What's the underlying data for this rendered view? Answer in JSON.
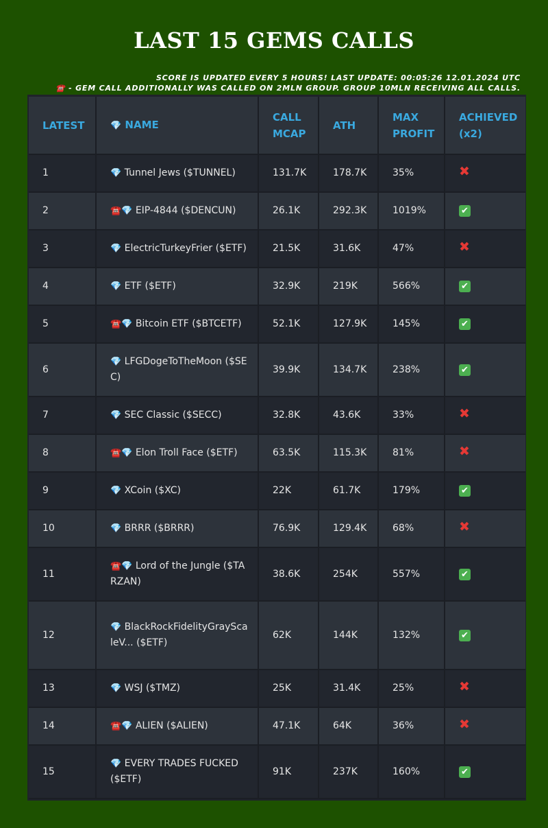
{
  "page": {
    "title": "LAST 15 GEMS CALLS",
    "note_line1": "SCORE IS UPDATED EVERY 5 HOURS! LAST UPDATE: 00:05:26 12.01.2024 UTC",
    "note_line2_icon": "☎️",
    "note_line2": " - GEM CALL ADDITIONALLY WAS CALLED ON 2MLN GROUP. GROUP 10MLN RECEIVING ALL CALLS."
  },
  "icons": {
    "gem": "💎",
    "phone": "☎️",
    "achieved_yes": "✔",
    "achieved_no": "✖"
  },
  "colors": {
    "page_bg": "#1d5100",
    "header_text": "#3aa9df",
    "achieved_yes": "#4caf50",
    "achieved_no": "#e53935"
  },
  "table": {
    "headers": {
      "latest": "LATEST",
      "name": "NAME",
      "call_mcap": "CALL MCAP",
      "ath": "ATH",
      "max_profit": "MAX PROFIT",
      "achieved": "ACHIEVED",
      "achieved_suffix": "(x2)"
    },
    "rows": [
      {
        "n": "1",
        "name": "Tunnel Jews ($TUNNEL)",
        "called_2mln": false,
        "mcap": "131.7K",
        "ath": "178.7K",
        "profit": "35%",
        "achieved": false
      },
      {
        "n": "2",
        "name": "EIP-4844 ($DENCUN)",
        "called_2mln": true,
        "mcap": "26.1K",
        "ath": "292.3K",
        "profit": "1019%",
        "achieved": true
      },
      {
        "n": "3",
        "name": "ElectricTurkeyFrier ($ETF)",
        "called_2mln": false,
        "mcap": "21.5K",
        "ath": "31.6K",
        "profit": "47%",
        "achieved": false
      },
      {
        "n": "4",
        "name": "ETF ($ETF)",
        "called_2mln": false,
        "mcap": "32.9K",
        "ath": "219K",
        "profit": "566%",
        "achieved": true
      },
      {
        "n": "5",
        "name": "Bitcoin ETF ($BTCETF)",
        "called_2mln": true,
        "mcap": "52.1K",
        "ath": "127.9K",
        "profit": "145%",
        "achieved": true
      },
      {
        "n": "6",
        "name": "LFGDogeToTheMoon ($SEC)",
        "called_2mln": false,
        "mcap": "39.9K",
        "ath": "134.7K",
        "profit": "238%",
        "achieved": true
      },
      {
        "n": "7",
        "name": "SEC Classic ($SECC)",
        "called_2mln": false,
        "mcap": "32.8K",
        "ath": "43.6K",
        "profit": "33%",
        "achieved": false
      },
      {
        "n": "8",
        "name": "Elon Troll Face ($ETF)",
        "called_2mln": true,
        "mcap": "63.5K",
        "ath": "115.3K",
        "profit": "81%",
        "achieved": false
      },
      {
        "n": "9",
        "name": "XCoin ($XC)",
        "called_2mln": false,
        "mcap": "22K",
        "ath": "61.7K",
        "profit": "179%",
        "achieved": true
      },
      {
        "n": "10",
        "name": "BRRR ($BRRR)",
        "called_2mln": false,
        "mcap": "76.9K",
        "ath": "129.4K",
        "profit": "68%",
        "achieved": false
      },
      {
        "n": "11",
        "name": "Lord of the Jungle ($TARZAN)",
        "called_2mln": true,
        "mcap": "38.6K",
        "ath": "254K",
        "profit": "557%",
        "achieved": true
      },
      {
        "n": "12",
        "name": "BlackRockFidelityGrayScaleV... ($ETF)",
        "called_2mln": false,
        "mcap": "62K",
        "ath": "144K",
        "profit": "132%",
        "achieved": true
      },
      {
        "n": "13",
        "name": "WSJ ($TMZ)",
        "called_2mln": false,
        "mcap": "25K",
        "ath": "31.4K",
        "profit": "25%",
        "achieved": false
      },
      {
        "n": "14",
        "name": "ALIEN ($ALIEN)",
        "called_2mln": true,
        "mcap": "47.1K",
        "ath": "64K",
        "profit": "36%",
        "achieved": false
      },
      {
        "n": "15",
        "name": "EVERY TRADES FUCKED ($ETF)",
        "called_2mln": false,
        "mcap": "91K",
        "ath": "237K",
        "profit": "160%",
        "achieved": true
      }
    ]
  }
}
